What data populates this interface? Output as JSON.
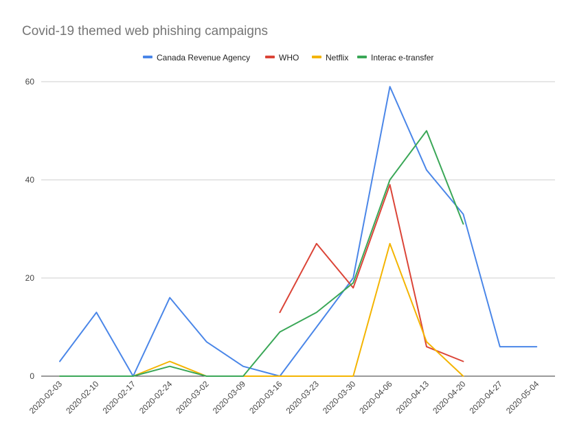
{
  "chart_data": {
    "type": "line",
    "title": "Covid-19 themed web phishing campaigns",
    "xlabel": "",
    "ylabel": "",
    "ylim": [
      0,
      60
    ],
    "yticks": [
      "0",
      "20",
      "40",
      "60"
    ],
    "grid": true,
    "legend_position": "top",
    "categories": [
      "2020-02-03",
      "2020-02-10",
      "2020-02-17",
      "2020-02-24",
      "2020-03-02",
      "2020-03-09",
      "2020-03-16",
      "2020-03-23",
      "2020-03-30",
      "2020-04-06",
      "2020-04-13",
      "2020-04-20",
      "2020-04-27",
      "2020-05-04"
    ],
    "series": [
      {
        "name": "Canada Revenue Agency",
        "color": "#4a86e8",
        "values": [
          3,
          13,
          0,
          16,
          7,
          2,
          0,
          10,
          20,
          59,
          42,
          33,
          6,
          6
        ]
      },
      {
        "name": "WHO",
        "color": "#db4437",
        "values": [
          null,
          null,
          null,
          null,
          null,
          null,
          13,
          27,
          18,
          39,
          6,
          3,
          null,
          null
        ]
      },
      {
        "name": "Netflix",
        "color": "#f4b400",
        "values": [
          0,
          0,
          0,
          3,
          0,
          0,
          0,
          0,
          0,
          27,
          7,
          0,
          null,
          null
        ]
      },
      {
        "name": "Interac e-transfer",
        "color": "#3aa757",
        "values": [
          0,
          0,
          0,
          2,
          0,
          0,
          9,
          13,
          19,
          40,
          50,
          31,
          null,
          null
        ]
      }
    ]
  }
}
